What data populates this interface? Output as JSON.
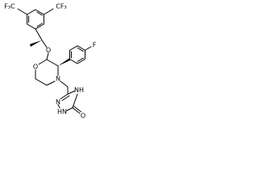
{
  "atoms": [
    {
      "label": "F₃C"
    },
    {
      "label": "CF₃"
    },
    {
      "label": "O"
    },
    {
      "label": "O"
    },
    {
      "label": "F"
    },
    {
      "label": "N"
    },
    {
      "label": "N"
    },
    {
      "label": "HN"
    },
    {
      "label": "NH"
    },
    {
      "label": "O"
    }
  ]
}
